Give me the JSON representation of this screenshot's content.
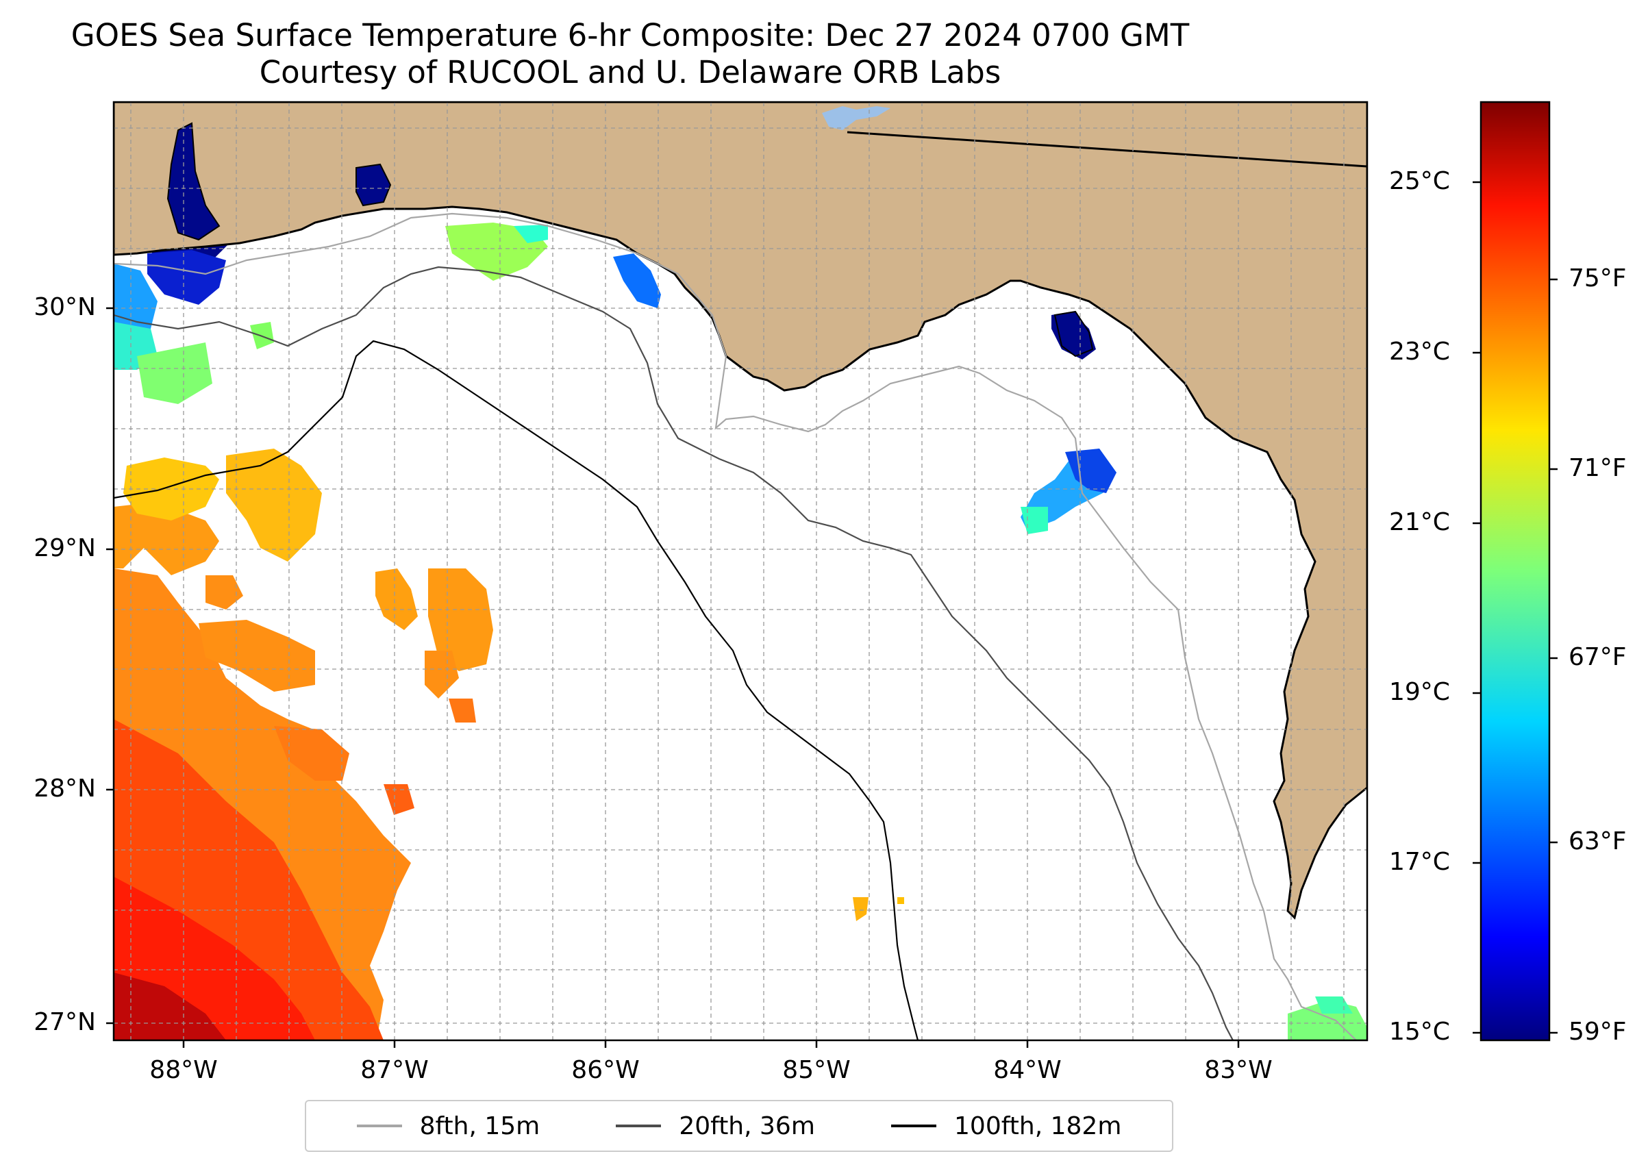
{
  "title": {
    "line1": "GOES Sea Surface Temperature 6-hr Composite: Dec 27 2024 0700 GMT",
    "line2": "Courtesy of RUCOOL and U. Delaware ORB Labs"
  },
  "map": {
    "land_color": "#d2b48c",
    "ocean_color": "#ffffff",
    "lon_labels": [
      "88°W",
      "87°W",
      "86°W",
      "85°W",
      "84°W",
      "83°W"
    ],
    "lat_labels": [
      "30°N",
      "29°N",
      "28°N",
      "27°N"
    ],
    "extent": {
      "lon_min": -88.33,
      "lon_max": -82.4,
      "lat_min": 26.94,
      "lat_max": 30.87
    }
  },
  "colorbar": {
    "celsius_labels": [
      "25°C",
      "23°C",
      "21°C",
      "19°C",
      "17°C",
      "15°C"
    ],
    "fahrenheit_labels": [
      "75°F",
      "71°F",
      "67°F",
      "63°F",
      "59°F"
    ],
    "colormap": "jet",
    "range_c": [
      15,
      26
    ]
  },
  "legend": {
    "items": [
      {
        "label": "8fth, 15m",
        "color": "#a6a6a6"
      },
      {
        "label": "20fth, 36m",
        "color": "#4d4d4d"
      },
      {
        "label": "100fth, 182m",
        "color": "#000000"
      }
    ]
  }
}
